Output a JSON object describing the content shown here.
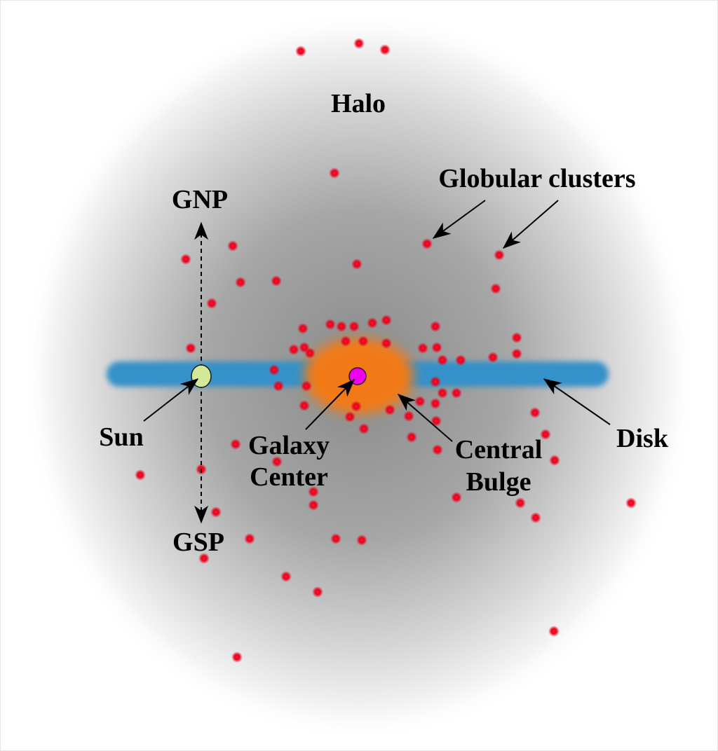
{
  "labels": {
    "halo": "Halo",
    "globular_clusters": "Globular clusters",
    "gnp": "GNP",
    "gsp": "GSP",
    "sun": "Sun",
    "galaxy_center_line1": "Galaxy",
    "galaxy_center_line2": "Center",
    "central_bulge_line1": "Central",
    "central_bulge_line2": "Bulge",
    "disk": "Disk"
  },
  "colors": {
    "halo": "#8f8f8f",
    "disk": "#3591c9",
    "bulge": "#f27a15",
    "galaxy_center": "#ee00ee",
    "sun": "#d4e89a",
    "globular_cluster": "#e8001c",
    "text": "#000000"
  }
}
